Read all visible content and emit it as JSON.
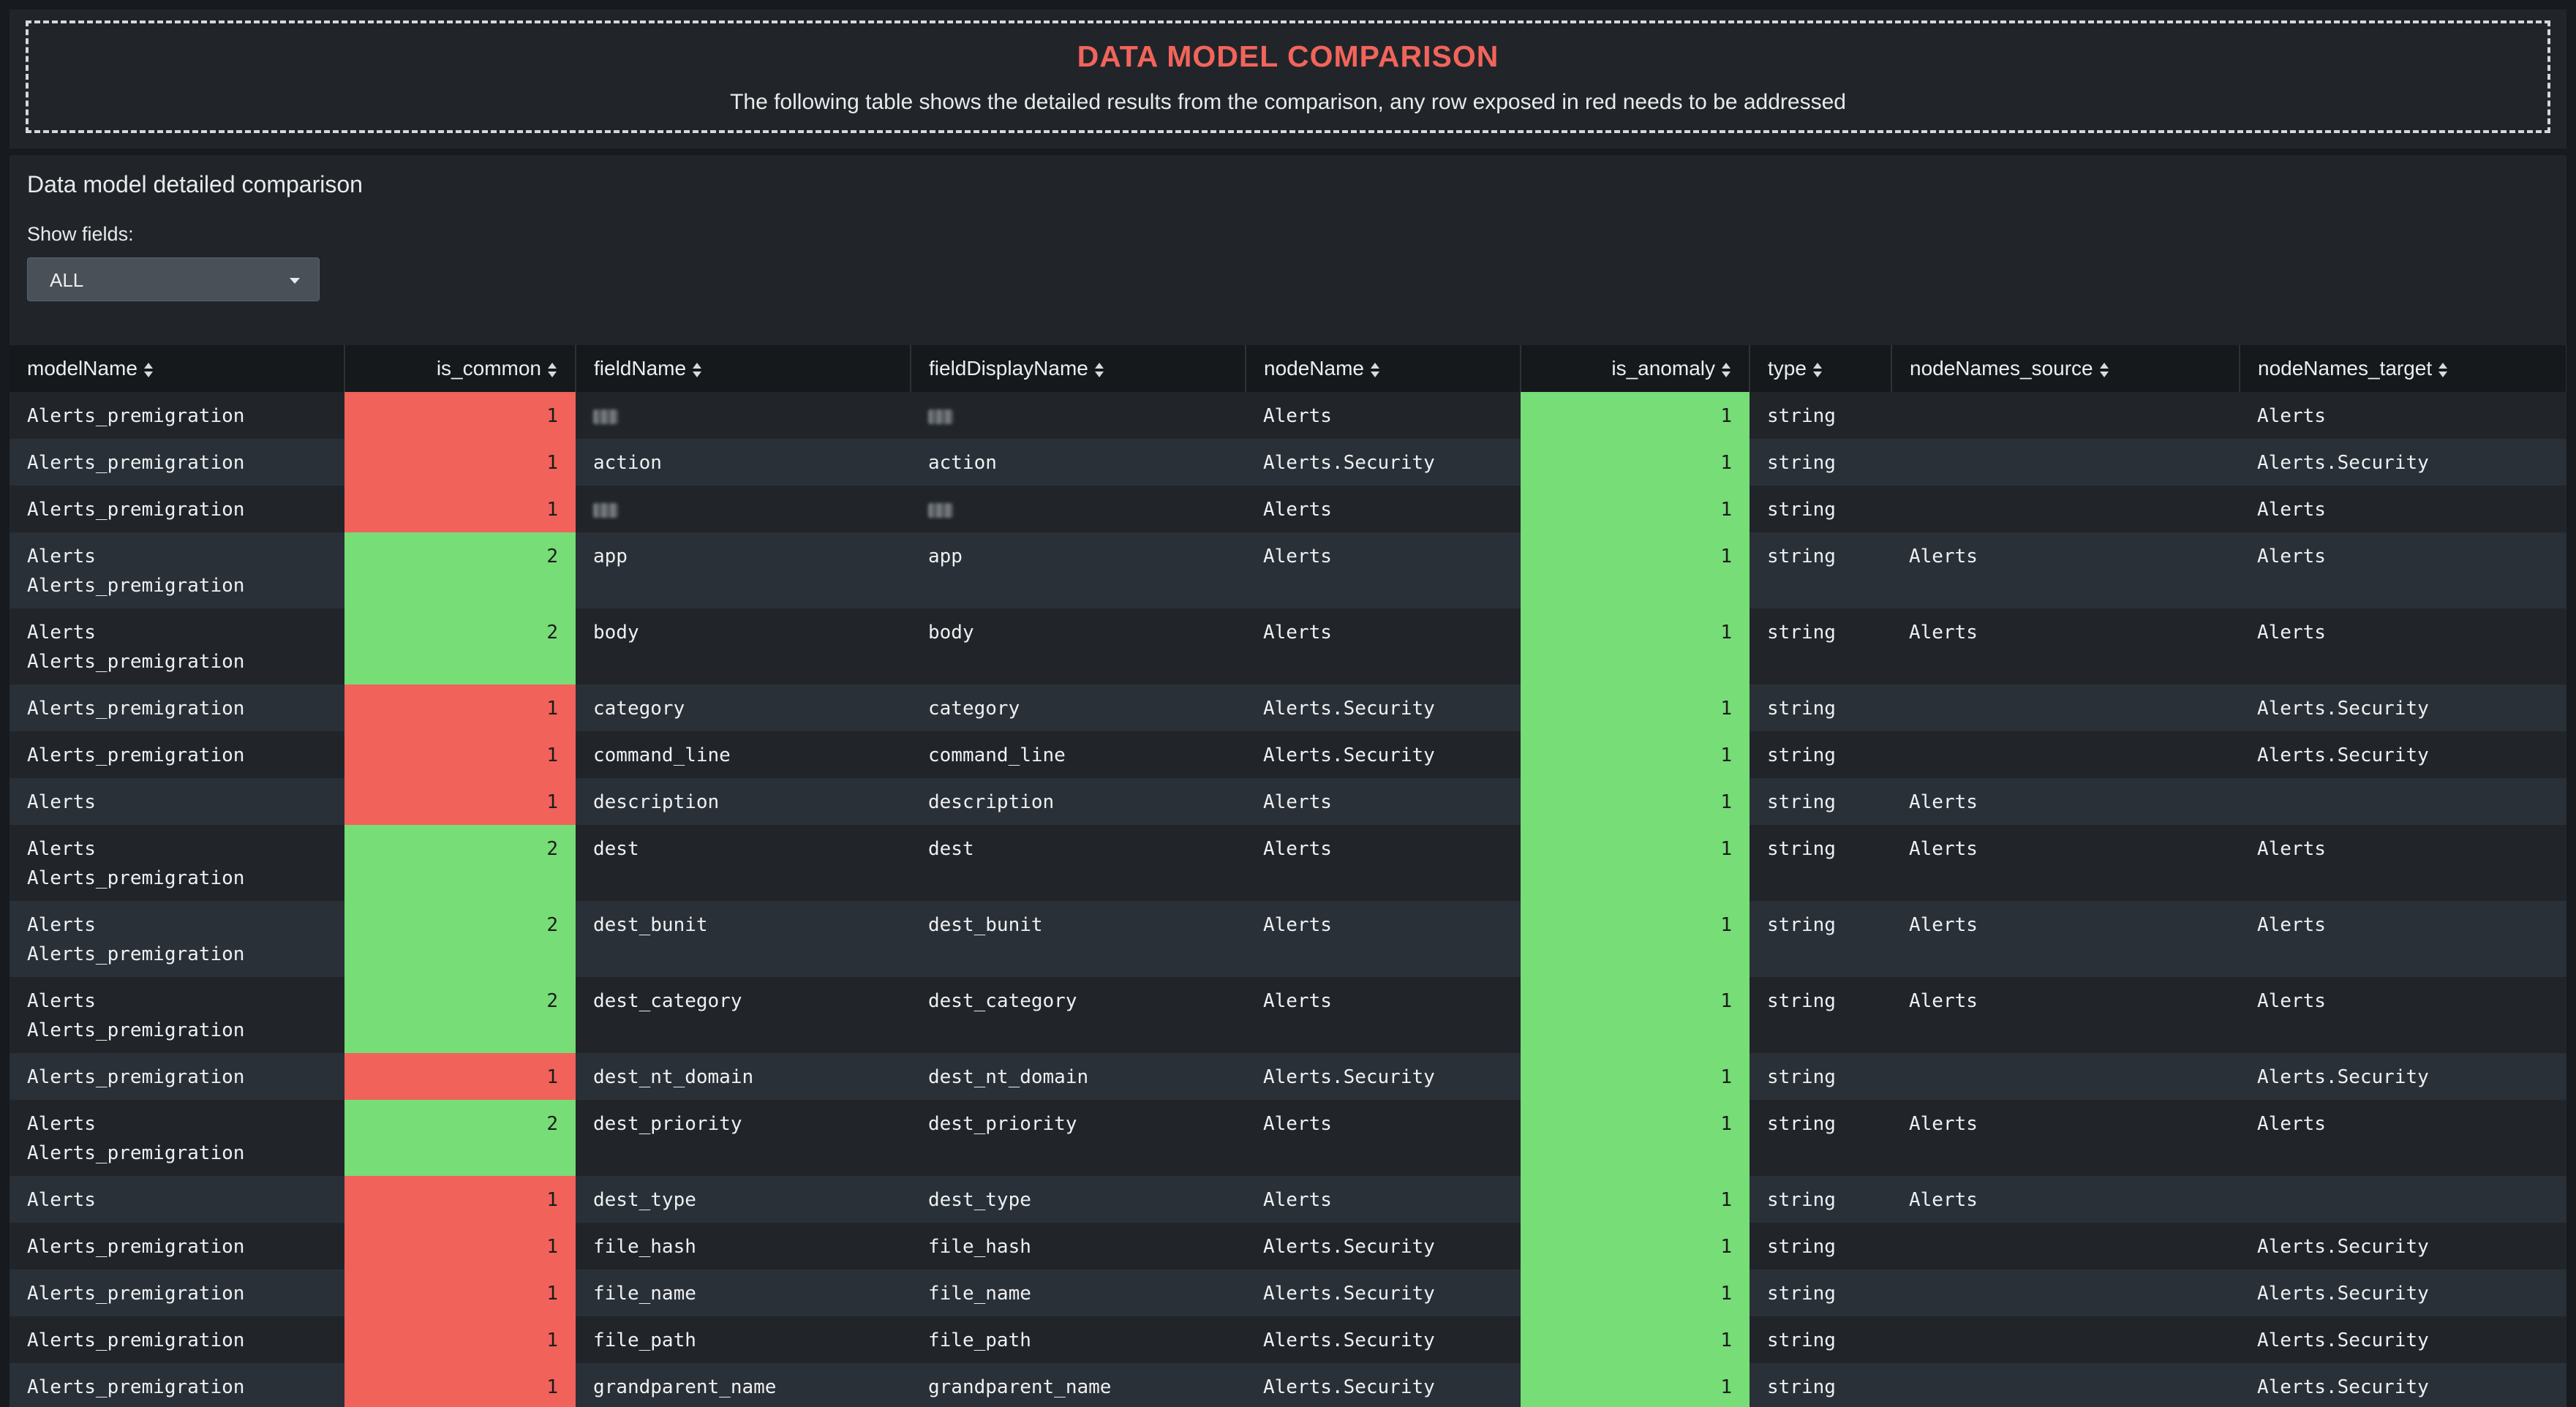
{
  "header": {
    "title": "DATA MODEL COMPARISON",
    "subtitle": "The following table shows the detailed results from the comparison, any row exposed in red needs to be addressed"
  },
  "panel": {
    "title": "Data model detailed comparison",
    "filter_label": "Show fields:",
    "filter_value": "ALL"
  },
  "colors": {
    "red": "#f1625a",
    "green": "#76dd77",
    "title_red": "#f2645b"
  },
  "table": {
    "columns": [
      "modelName",
      "is_common",
      "fieldName",
      "fieldDisplayName",
      "nodeName",
      "is_anomaly",
      "type",
      "nodeNames_source",
      "nodeNames_target"
    ],
    "rows": [
      {
        "modelName": [
          "Alerts_premigration"
        ],
        "is_common": "1",
        "fieldName": "",
        "fieldDisplayName": "",
        "nodeName": "Alerts",
        "is_anomaly": "1",
        "type": "string",
        "source": "",
        "target": "Alerts",
        "masked": true
      },
      {
        "modelName": [
          "Alerts_premigration"
        ],
        "is_common": "1",
        "fieldName": "action",
        "fieldDisplayName": "action",
        "nodeName": "Alerts.Security",
        "is_anomaly": "1",
        "type": "string",
        "source": "",
        "target": "Alerts.Security"
      },
      {
        "modelName": [
          "Alerts_premigration"
        ],
        "is_common": "1",
        "fieldName": "",
        "fieldDisplayName": "",
        "nodeName": "Alerts",
        "is_anomaly": "1",
        "type": "string",
        "source": "",
        "target": "Alerts",
        "masked": true
      },
      {
        "modelName": [
          "Alerts",
          "Alerts_premigration"
        ],
        "is_common": "2",
        "fieldName": "app",
        "fieldDisplayName": "app",
        "nodeName": "Alerts",
        "is_anomaly": "1",
        "type": "string",
        "source": "Alerts",
        "target": "Alerts"
      },
      {
        "modelName": [
          "Alerts",
          "Alerts_premigration"
        ],
        "is_common": "2",
        "fieldName": "body",
        "fieldDisplayName": "body",
        "nodeName": "Alerts",
        "is_anomaly": "1",
        "type": "string",
        "source": "Alerts",
        "target": "Alerts"
      },
      {
        "modelName": [
          "Alerts_premigration"
        ],
        "is_common": "1",
        "fieldName": "category",
        "fieldDisplayName": "category",
        "nodeName": "Alerts.Security",
        "is_anomaly": "1",
        "type": "string",
        "source": "",
        "target": "Alerts.Security"
      },
      {
        "modelName": [
          "Alerts_premigration"
        ],
        "is_common": "1",
        "fieldName": "command_line",
        "fieldDisplayName": "command_line",
        "nodeName": "Alerts.Security",
        "is_anomaly": "1",
        "type": "string",
        "source": "",
        "target": "Alerts.Security"
      },
      {
        "modelName": [
          "Alerts"
        ],
        "is_common": "1",
        "fieldName": "description",
        "fieldDisplayName": "description",
        "nodeName": "Alerts",
        "is_anomaly": "1",
        "type": "string",
        "source": "Alerts",
        "target": ""
      },
      {
        "modelName": [
          "Alerts",
          "Alerts_premigration"
        ],
        "is_common": "2",
        "fieldName": "dest",
        "fieldDisplayName": "dest",
        "nodeName": "Alerts",
        "is_anomaly": "1",
        "type": "string",
        "source": "Alerts",
        "target": "Alerts"
      },
      {
        "modelName": [
          "Alerts",
          "Alerts_premigration"
        ],
        "is_common": "2",
        "fieldName": "dest_bunit",
        "fieldDisplayName": "dest_bunit",
        "nodeName": "Alerts",
        "is_anomaly": "1",
        "type": "string",
        "source": "Alerts",
        "target": "Alerts"
      },
      {
        "modelName": [
          "Alerts",
          "Alerts_premigration"
        ],
        "is_common": "2",
        "fieldName": "dest_category",
        "fieldDisplayName": "dest_category",
        "nodeName": "Alerts",
        "is_anomaly": "1",
        "type": "string",
        "source": "Alerts",
        "target": "Alerts"
      },
      {
        "modelName": [
          "Alerts_premigration"
        ],
        "is_common": "1",
        "fieldName": "dest_nt_domain",
        "fieldDisplayName": "dest_nt_domain",
        "nodeName": "Alerts.Security",
        "is_anomaly": "1",
        "type": "string",
        "source": "",
        "target": "Alerts.Security"
      },
      {
        "modelName": [
          "Alerts",
          "Alerts_premigration"
        ],
        "is_common": "2",
        "fieldName": "dest_priority",
        "fieldDisplayName": "dest_priority",
        "nodeName": "Alerts",
        "is_anomaly": "1",
        "type": "string",
        "source": "Alerts",
        "target": "Alerts"
      },
      {
        "modelName": [
          "Alerts"
        ],
        "is_common": "1",
        "fieldName": "dest_type",
        "fieldDisplayName": "dest_type",
        "nodeName": "Alerts",
        "is_anomaly": "1",
        "type": "string",
        "source": "Alerts",
        "target": ""
      },
      {
        "modelName": [
          "Alerts_premigration"
        ],
        "is_common": "1",
        "fieldName": "file_hash",
        "fieldDisplayName": "file_hash",
        "nodeName": "Alerts.Security",
        "is_anomaly": "1",
        "type": "string",
        "source": "",
        "target": "Alerts.Security"
      },
      {
        "modelName": [
          "Alerts_premigration"
        ],
        "is_common": "1",
        "fieldName": "file_name",
        "fieldDisplayName": "file_name",
        "nodeName": "Alerts.Security",
        "is_anomaly": "1",
        "type": "string",
        "source": "",
        "target": "Alerts.Security"
      },
      {
        "modelName": [
          "Alerts_premigration"
        ],
        "is_common": "1",
        "fieldName": "file_path",
        "fieldDisplayName": "file_path",
        "nodeName": "Alerts.Security",
        "is_anomaly": "1",
        "type": "string",
        "source": "",
        "target": "Alerts.Security"
      },
      {
        "modelName": [
          "Alerts_premigration"
        ],
        "is_common": "1",
        "fieldName": "grandparent_name",
        "fieldDisplayName": "grandparent_name",
        "nodeName": "Alerts.Security",
        "is_anomaly": "1",
        "type": "string",
        "source": "",
        "target": "Alerts.Security"
      }
    ]
  }
}
